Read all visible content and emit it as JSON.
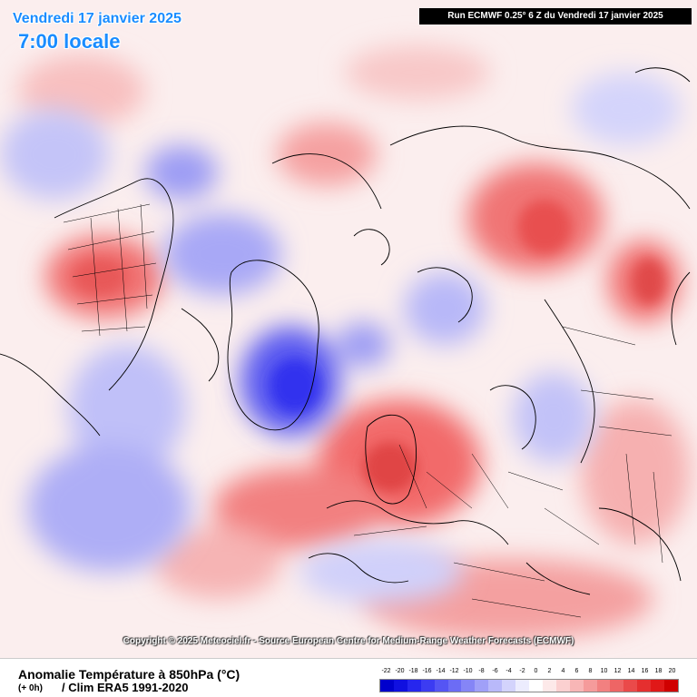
{
  "header": {
    "date_title": "Vendredi 17 janvier 2025",
    "time_title": "7:00 locale",
    "run_info": "Run ECMWF 0.25° 6 Z du Vendredi 17 janvier 2025"
  },
  "copyright": "Copyright © 2025 Meteociel.fr - Source European Centre for Medium-Range Weather Forecasts (ECMWF)",
  "footer": {
    "product_title": "Anomalie Température à 850hPa (°C)",
    "lead_time": "(+ 0h)",
    "climatology": "/ Clim ERA5 1991-2020"
  },
  "scale": {
    "labels": [
      "-22",
      "-20",
      "-18",
      "-16",
      "-14",
      "-12",
      "-10",
      "-8",
      "-6",
      "-4",
      "-2",
      "0",
      "2",
      "4",
      "6",
      "8",
      "10",
      "12",
      "14",
      "16",
      "18",
      "20"
    ],
    "colors": [
      "#0000cc",
      "#1010e0",
      "#2626ee",
      "#3c3cf2",
      "#5555f4",
      "#6c6cf5",
      "#8585f6",
      "#a0a0f8",
      "#b9b9fa",
      "#d3d3fc",
      "#ececfe",
      "#ffffff",
      "#fde9e9",
      "#fbd0d0",
      "#f8b6b6",
      "#f59b9b",
      "#f28080",
      "#ee6565",
      "#ea4a4a",
      "#e52f2f",
      "#e01818",
      "#d00000"
    ]
  },
  "legend_colors": {
    "cold": "#3333ee",
    "warm": "#ee4444",
    "title_blue": "#1a8cff"
  }
}
